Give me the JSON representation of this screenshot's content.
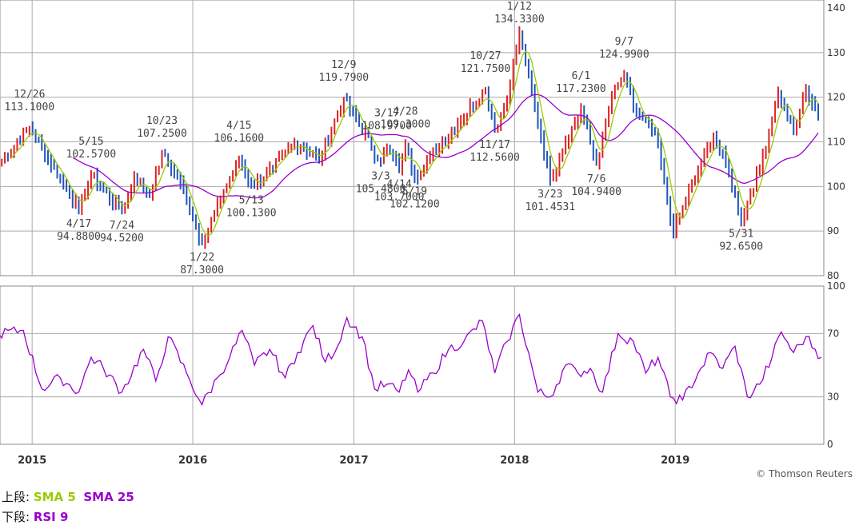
{
  "chart_data": [
    {
      "type": "candlestick",
      "panel": "upper",
      "y_ticks": [
        "140",
        "130",
        "120",
        "110",
        "100",
        "90",
        "80"
      ],
      "ylim": [
        80,
        140
      ],
      "x_year_labels": [
        "2015",
        "2016",
        "2017",
        "2018",
        "2019"
      ],
      "grid": true,
      "series": [
        {
          "name": "SMA 5",
          "color": "#99cc00"
        },
        {
          "name": "SMA 25",
          "color": "#9900cc"
        }
      ],
      "annotations": [
        {
          "date": "12/26",
          "value": "113.1000"
        },
        {
          "date": "5/15",
          "value": "102.5700"
        },
        {
          "date": "4/17",
          "value": "94.8800"
        },
        {
          "date": "7/24",
          "value": "94.5200"
        },
        {
          "date": "10/23",
          "value": "107.2500"
        },
        {
          "date": "1/22",
          "value": "87.3000"
        },
        {
          "date": "4/15",
          "value": "106.1600"
        },
        {
          "date": "5/13",
          "value": "100.1300"
        },
        {
          "date": "12/9",
          "value": "119.7900"
        },
        {
          "date": "3/3",
          "value": "105.4800"
        },
        {
          "date": "3/17",
          "value": "108.9700"
        },
        {
          "date": "4/28",
          "value": "109.3000"
        },
        {
          "date": "4/14",
          "value": "103.7000"
        },
        {
          "date": "5/19",
          "value": "102.1200"
        },
        {
          "date": "10/27",
          "value": "121.7500"
        },
        {
          "date": "11/17",
          "value": "112.5600"
        },
        {
          "date": "1/12",
          "value": "134.3300"
        },
        {
          "date": "3/23",
          "value": "101.4531"
        },
        {
          "date": "6/1",
          "value": "117.2300"
        },
        {
          "date": "7/6",
          "value": "104.9400"
        },
        {
          "date": "9/7",
          "value": "124.9900"
        },
        {
          "date": "5/31",
          "value": "92.6500"
        }
      ],
      "pivots": [
        [
          "2014-10-17",
          105
        ],
        [
          "2014-12-26",
          113.1
        ],
        [
          "2015-03-06",
          102
        ],
        [
          "2015-04-17",
          94.88
        ],
        [
          "2015-05-15",
          102.57
        ],
        [
          "2015-07-24",
          94.52
        ],
        [
          "2015-08-21",
          102
        ],
        [
          "2015-09-25",
          98
        ],
        [
          "2015-10-23",
          107.25
        ],
        [
          "2015-12-04",
          101
        ],
        [
          "2016-01-22",
          87.3
        ],
        [
          "2016-03-11",
          99
        ],
        [
          "2016-04-15",
          106.16
        ],
        [
          "2016-05-13",
          100.13
        ],
        [
          "2016-07-01",
          104
        ],
        [
          "2016-08-19",
          110
        ],
        [
          "2016-10-14",
          106
        ],
        [
          "2016-12-09",
          119.79
        ],
        [
          "2017-03-03",
          105.48
        ],
        [
          "2017-03-17",
          108.97
        ],
        [
          "2017-04-14",
          103.7
        ],
        [
          "2017-04-28",
          109.3
        ],
        [
          "2017-05-19",
          102.12
        ],
        [
          "2017-07-14",
          109
        ],
        [
          "2017-08-25",
          114
        ],
        [
          "2017-10-27",
          121.75
        ],
        [
          "2017-11-17",
          112.56
        ],
        [
          "2017-12-15",
          120
        ],
        [
          "2018-01-12",
          134.33
        ],
        [
          "2018-03-23",
          101.4531
        ],
        [
          "2018-04-27",
          110
        ],
        [
          "2018-06-01",
          117.23
        ],
        [
          "2018-07-06",
          104.94
        ],
        [
          "2018-08-10",
          120
        ],
        [
          "2018-09-07",
          124.99
        ],
        [
          "2018-10-05",
          116
        ],
        [
          "2018-11-16",
          112
        ],
        [
          "2018-12-28",
          90
        ],
        [
          "2019-02-15",
          102
        ],
        [
          "2019-03-29",
          111
        ],
        [
          "2019-04-26",
          105
        ],
        [
          "2019-05-31",
          92.65
        ],
        [
          "2019-07-12",
          104
        ],
        [
          "2019-08-23",
          121
        ],
        [
          "2019-09-27",
          112
        ],
        [
          "2019-10-25",
          122
        ],
        [
          "2019-11-22",
          116
        ]
      ]
    },
    {
      "type": "line",
      "panel": "lower",
      "y_ticks": [
        "100",
        "70",
        "30",
        "0"
      ],
      "ylim": [
        0,
        100
      ],
      "series": [
        {
          "name": "RSI 9",
          "color": "#9900cc"
        }
      ],
      "pivots": [
        [
          "2014-10-17",
          70
        ],
        [
          "2014-12-12",
          72
        ],
        [
          "2015-01-23",
          35
        ],
        [
          "2015-03-06",
          42
        ],
        [
          "2015-04-17",
          33
        ],
        [
          "2015-05-15",
          55
        ],
        [
          "2015-06-12",
          48
        ],
        [
          "2015-07-24",
          33
        ],
        [
          "2015-09-11",
          60
        ],
        [
          "2015-10-09",
          40
        ],
        [
          "2015-11-06",
          68
        ],
        [
          "2015-12-18",
          45
        ],
        [
          "2016-01-22",
          25
        ],
        [
          "2016-02-26",
          42
        ],
        [
          "2016-03-25",
          55
        ],
        [
          "2016-04-22",
          72
        ],
        [
          "2016-05-20",
          50
        ],
        [
          "2016-06-24",
          60
        ],
        [
          "2016-07-29",
          42
        ],
        [
          "2016-08-26",
          58
        ],
        [
          "2016-09-30",
          75
        ],
        [
          "2016-10-28",
          52
        ],
        [
          "2016-11-25",
          62
        ],
        [
          "2016-12-16",
          80
        ],
        [
          "2017-01-20",
          68
        ],
        [
          "2017-02-17",
          35
        ],
        [
          "2017-03-17",
          38
        ],
        [
          "2017-04-14",
          33
        ],
        [
          "2017-05-05",
          47
        ],
        [
          "2017-05-26",
          33
        ],
        [
          "2017-06-30",
          45
        ],
        [
          "2017-08-04",
          60
        ],
        [
          "2017-09-08",
          65
        ],
        [
          "2017-10-20",
          78
        ],
        [
          "2017-11-17",
          45
        ],
        [
          "2017-12-15",
          65
        ],
        [
          "2018-01-12",
          82
        ],
        [
          "2018-02-23",
          33
        ],
        [
          "2018-03-23",
          30
        ],
        [
          "2018-04-27",
          50
        ],
        [
          "2018-05-25",
          45
        ],
        [
          "2018-06-22",
          48
        ],
        [
          "2018-07-20",
          33
        ],
        [
          "2018-08-24",
          70
        ],
        [
          "2018-09-28",
          65
        ],
        [
          "2018-10-26",
          45
        ],
        [
          "2018-11-23",
          55
        ],
        [
          "2018-12-21",
          30
        ],
        [
          "2019-01-18",
          28
        ],
        [
          "2019-02-22",
          45
        ],
        [
          "2019-03-22",
          58
        ],
        [
          "2019-04-19",
          48
        ],
        [
          "2019-05-17",
          62
        ],
        [
          "2019-06-14",
          30
        ],
        [
          "2019-07-12",
          38
        ],
        [
          "2019-08-09",
          55
        ],
        [
          "2019-08-30",
          71
        ],
        [
          "2019-09-27",
          58
        ],
        [
          "2019-10-25",
          68
        ],
        [
          "2019-11-29",
          55
        ]
      ]
    }
  ],
  "credit": "© Thomson Reuters",
  "legend": {
    "upper_prefix": "上段: ",
    "sma5": "SMA 5",
    "sma25": "SMA 25",
    "lower_prefix": "下段: ",
    "rsi": "RSI 9"
  },
  "colors": {
    "up": "#dd2222",
    "down": "#2255bb",
    "sma5": "#99cc00",
    "sma25": "#9900cc",
    "rsi": "#9900cc",
    "grid": "#aaaaaa"
  }
}
